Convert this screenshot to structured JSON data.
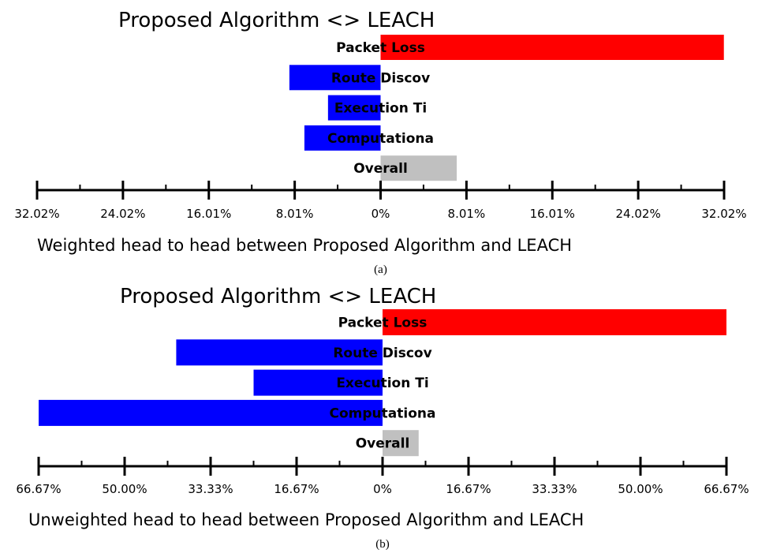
{
  "chart_data": [
    {
      "type": "bar",
      "orientation": "horizontal-diverging",
      "title": "Proposed Algorithm <> LEACH",
      "xlabel": "Weighted head to head between Proposed Algorithm and LEACH",
      "caption": "(a)",
      "categories": [
        "Packet Loss",
        "Route Discov",
        "Execution Ti",
        "Computationa",
        "Overall"
      ],
      "values": [
        32.0,
        -8.5,
        -4.9,
        -7.1,
        7.1
      ],
      "colors": [
        "#ff0000",
        "#0000ff",
        "#0000ff",
        "#0000ff",
        "#c0c0c0"
      ],
      "xlim": [
        -32.02,
        32.02
      ],
      "tick_labels": [
        "32.02%",
        "24.02%",
        "16.01%",
        "8.01%",
        "0%",
        "8.01%",
        "16.01%",
        "24.02%",
        "32.02%"
      ],
      "grid": false
    },
    {
      "type": "bar",
      "orientation": "horizontal-diverging",
      "title": "Proposed Algorithm <> LEACH",
      "xlabel": "Unweighted head to head between Proposed Algorithm and LEACH",
      "caption": "(b)",
      "categories": [
        "Packet Loss",
        "Route Discov",
        "Execution Ti",
        "Computationa",
        "Overall"
      ],
      "values": [
        66.67,
        -40.0,
        -25.0,
        -66.67,
        7.0
      ],
      "colors": [
        "#ff0000",
        "#0000ff",
        "#0000ff",
        "#0000ff",
        "#c0c0c0"
      ],
      "xlim": [
        -66.67,
        66.67
      ],
      "tick_labels": [
        "66.67%",
        "50.00%",
        "33.33%",
        "16.67%",
        "0%",
        "16.67%",
        "33.33%",
        "50.00%",
        "66.67%"
      ],
      "grid": false
    }
  ]
}
